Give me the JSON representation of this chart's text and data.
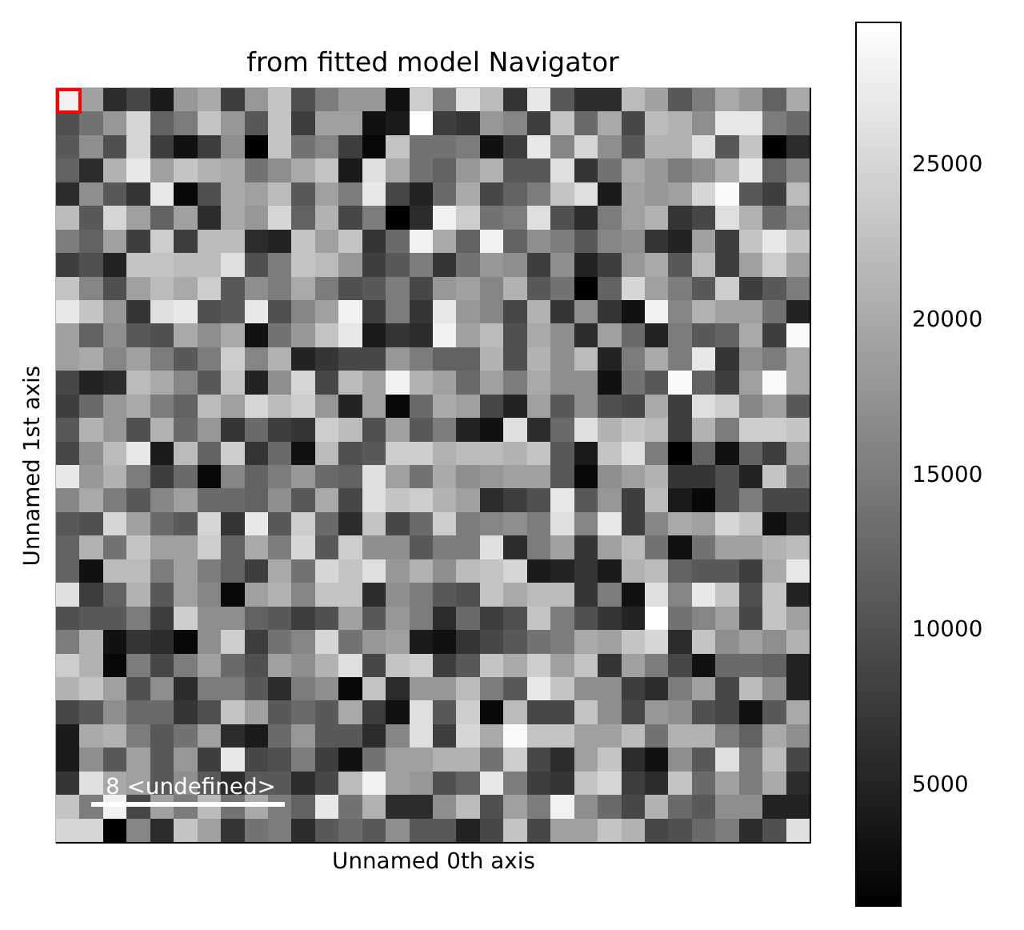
{
  "chart_data": {
    "type": "heatmap",
    "title": "from fitted model Navigator",
    "xlabel": "Unnamed 0th axis",
    "ylabel": "Unnamed 1st axis",
    "categories": [
      null,
      null,
      null,
      null,
      null,
      null,
      null,
      null,
      null,
      null,
      null,
      null,
      null,
      null,
      null,
      null,
      null,
      null,
      null,
      null,
      null,
      null,
      null,
      null,
      null,
      null,
      null,
      null,
      null,
      null,
      null,
      null
    ],
    "y_categories": [
      null,
      null,
      null,
      null,
      null,
      null,
      null,
      null,
      null,
      null,
      null,
      null,
      null,
      null,
      null,
      null,
      null,
      null,
      null,
      null,
      null,
      null,
      null,
      null,
      null,
      null,
      null,
      null,
      null,
      null,
      null,
      null
    ],
    "cells": [
      [
        28000,
        19000,
        6000,
        9000,
        4000,
        18000,
        20000,
        8000,
        18000,
        23000,
        10000,
        15000,
        18000,
        18000,
        3000,
        24000,
        15000,
        26000,
        22000,
        7000,
        27000,
        11000,
        6000,
        6000,
        22000,
        19000,
        11000,
        15000,
        20000,
        18000,
        12000,
        20000
      ],
      [
        10000,
        14000,
        18000,
        25000,
        12000,
        15000,
        23000,
        18000,
        11000,
        23000,
        8000,
        19000,
        19000,
        3000,
        4000,
        29600,
        8000,
        7000,
        18000,
        16000,
        8000,
        23000,
        13000,
        20000,
        9000,
        22000,
        21000,
        17000,
        27000,
        27000,
        15000,
        13000
      ],
      [
        11000,
        17000,
        10000,
        25000,
        8000,
        3000,
        8000,
        17000,
        1100,
        23000,
        14000,
        16000,
        8000,
        2000,
        23000,
        14000,
        14000,
        15000,
        3000,
        8000,
        27000,
        16000,
        25000,
        17000,
        11000,
        21000,
        21000,
        26000,
        11000,
        23000,
        1100,
        6000
      ],
      [
        12000,
        6000,
        21000,
        27000,
        19000,
        23000,
        21000,
        20000,
        14000,
        17000,
        20000,
        23000,
        4000,
        26000,
        20000,
        14000,
        12000,
        18000,
        21000,
        11000,
        11000,
        26000,
        7000,
        14000,
        20000,
        18000,
        15000,
        17000,
        21000,
        27000,
        12000,
        16000
      ],
      [
        6000,
        17000,
        11000,
        7000,
        27000,
        2000,
        10000,
        20000,
        19000,
        22000,
        11000,
        19000,
        15000,
        27000,
        9000,
        5000,
        13000,
        20000,
        9000,
        12000,
        15000,
        23000,
        26000,
        4000,
        19000,
        18000,
        19000,
        25000,
        29000,
        11000,
        8000,
        22000
      ],
      [
        22000,
        11000,
        25000,
        19000,
        12000,
        19000,
        6000,
        20000,
        18000,
        25000,
        12000,
        21000,
        9000,
        15000,
        1100,
        6000,
        28000,
        24000,
        14000,
        15000,
        26000,
        10000,
        6000,
        15000,
        19000,
        21000,
        7000,
        9000,
        26000,
        21000,
        13000,
        17000
      ],
      [
        15000,
        12000,
        19000,
        8000,
        24000,
        8000,
        22000,
        22000,
        6000,
        5000,
        23000,
        19000,
        23000,
        7000,
        13000,
        28000,
        20000,
        12000,
        28000,
        12000,
        17000,
        15000,
        11000,
        16000,
        17000,
        7000,
        5000,
        19000,
        8000,
        23000,
        27000,
        23000
      ],
      [
        8000,
        10000,
        5000,
        23000,
        23000,
        22000,
        22000,
        26000,
        10000,
        15000,
        23000,
        22000,
        18000,
        8000,
        11000,
        15000,
        7000,
        14000,
        18000,
        17000,
        8000,
        17000,
        5000,
        8000,
        18000,
        20000,
        11000,
        22000,
        8000,
        19000,
        24000,
        19000
      ],
      [
        23000,
        16000,
        10000,
        19000,
        22000,
        20000,
        24000,
        11000,
        17000,
        15000,
        20000,
        15000,
        10000,
        11000,
        15000,
        9000,
        18000,
        19000,
        16000,
        21000,
        11000,
        14000,
        1100,
        12000,
        25000,
        19000,
        15000,
        11000,
        24000,
        8000,
        11000,
        15000
      ],
      [
        27000,
        23000,
        18000,
        7000,
        26000,
        27000,
        10000,
        11000,
        27000,
        10000,
        16000,
        19000,
        28000,
        8000,
        15000,
        7000,
        27000,
        18000,
        16000,
        9000,
        21000,
        7000,
        17000,
        7000,
        3000,
        28000,
        16000,
        21000,
        19000,
        19000,
        14000,
        5000
      ],
      [
        19000,
        12000,
        17000,
        11000,
        10000,
        20000,
        17000,
        20000,
        3000,
        14000,
        18000,
        23000,
        27000,
        4000,
        7000,
        6000,
        28000,
        19000,
        22000,
        10000,
        20000,
        17000,
        6000,
        19000,
        13000,
        5000,
        15000,
        11000,
        12000,
        20000,
        8000,
        29000
      ],
      [
        19000,
        20000,
        16000,
        19000,
        15000,
        11000,
        15000,
        24000,
        16000,
        21000,
        5000,
        7000,
        9000,
        9000,
        18000,
        15000,
        12000,
        12000,
        21000,
        10000,
        21000,
        17000,
        22000,
        5000,
        15000,
        20000,
        15000,
        27000,
        7000,
        17000,
        15000,
        20000
      ],
      [
        9000,
        5000,
        6000,
        22000,
        20000,
        16000,
        11000,
        23000,
        5000,
        17000,
        25000,
        9000,
        22000,
        19000,
        28000,
        21000,
        19000,
        13000,
        19000,
        15000,
        20000,
        17000,
        17000,
        3000,
        14000,
        11000,
        29000,
        12000,
        8000,
        19000,
        29000,
        20000
      ],
      [
        8000,
        13000,
        18000,
        20000,
        15000,
        12000,
        22000,
        19000,
        25000,
        22000,
        24000,
        18000,
        5000,
        19000,
        2000,
        13000,
        20000,
        19000,
        9000,
        5000,
        19000,
        11000,
        17000,
        10000,
        9000,
        20000,
        8000,
        26000,
        24000,
        16000,
        19000,
        11000
      ],
      [
        11000,
        21000,
        18000,
        10000,
        21000,
        13000,
        18000,
        7000,
        13000,
        8000,
        7000,
        24000,
        22000,
        10000,
        19000,
        11000,
        15000,
        5000,
        3000,
        26000,
        6000,
        13000,
        26000,
        21000,
        23000,
        22000,
        8000,
        21000,
        15000,
        24000,
        24000,
        23000
      ],
      [
        9000,
        17000,
        22000,
        27000,
        4000,
        22000,
        12000,
        24000,
        7000,
        13000,
        3000,
        22000,
        10000,
        11000,
        24000,
        24000,
        21000,
        22000,
        22000,
        21000,
        23000,
        11000,
        4000,
        23000,
        26000,
        15000,
        1100,
        12000,
        3000,
        12000,
        8000,
        19000
      ],
      [
        27000,
        18000,
        21000,
        15000,
        8000,
        13000,
        2000,
        16000,
        12000,
        15000,
        18000,
        13000,
        12000,
        26000,
        19000,
        14000,
        20000,
        17000,
        18000,
        19000,
        19000,
        11000,
        2000,
        17000,
        19000,
        21000,
        7000,
        7000,
        10000,
        5000,
        23000,
        14000
      ],
      [
        16000,
        20000,
        15000,
        11000,
        16000,
        19000,
        13000,
        13000,
        12000,
        17000,
        11000,
        20000,
        9000,
        26000,
        23000,
        24000,
        21000,
        19000,
        6000,
        8000,
        10000,
        27000,
        11000,
        18000,
        8000,
        22000,
        4000,
        2000,
        10000,
        15000,
        9000,
        9000
      ],
      [
        11000,
        10000,
        25000,
        19000,
        13000,
        11000,
        25000,
        7000,
        27000,
        11000,
        24000,
        13000,
        6000,
        23000,
        9000,
        13000,
        24000,
        15000,
        16000,
        17000,
        15000,
        26000,
        16000,
        27000,
        8000,
        16000,
        20000,
        19000,
        25000,
        23000,
        3000,
        6000
      ],
      [
        12000,
        21000,
        14000,
        23000,
        19000,
        19000,
        24000,
        12000,
        20000,
        15000,
        25000,
        11000,
        24000,
        17000,
        17000,
        11000,
        15000,
        15000,
        26000,
        6000,
        15000,
        19000,
        7000,
        19000,
        22000,
        14000,
        3000,
        14000,
        19000,
        19000,
        21000,
        22000
      ],
      [
        12000,
        3000,
        22000,
        22000,
        15000,
        19000,
        15000,
        12000,
        8000,
        20000,
        14000,
        25000,
        23000,
        26000,
        18000,
        21000,
        17000,
        22000,
        23000,
        25000,
        4000,
        5000,
        7000,
        4000,
        21000,
        22000,
        12000,
        11000,
        11000,
        8000,
        20000,
        27000
      ],
      [
        26000,
        8000,
        12000,
        21000,
        11000,
        19000,
        16000,
        2000,
        19000,
        21000,
        16000,
        23000,
        23000,
        6000,
        17000,
        15000,
        11000,
        10000,
        23000,
        20000,
        22000,
        22000,
        7000,
        15000,
        3000,
        26000,
        16000,
        27000,
        23000,
        10000,
        23000,
        5000
      ],
      [
        10000,
        11000,
        11000,
        15000,
        8000,
        24000,
        17000,
        17000,
        12000,
        11000,
        8000,
        10000,
        19000,
        11000,
        18000,
        15000,
        6000,
        13000,
        8000,
        10000,
        23000,
        15000,
        10000,
        7000,
        5000,
        29600,
        14000,
        16000,
        19000,
        9000,
        23000,
        19000
      ],
      [
        15000,
        21000,
        3000,
        7000,
        6000,
        2000,
        17000,
        24000,
        8000,
        14000,
        16000,
        25000,
        14000,
        18000,
        19000,
        4000,
        3000,
        7000,
        9000,
        11000,
        14000,
        15000,
        20000,
        19000,
        23000,
        25000,
        6000,
        23000,
        17000,
        19000,
        17000,
        21000
      ],
      [
        24000,
        21000,
        2000,
        15000,
        9000,
        15000,
        19000,
        13000,
        10000,
        19000,
        17000,
        21000,
        26000,
        9000,
        23000,
        24000,
        8000,
        11000,
        23000,
        20000,
        24000,
        19000,
        23000,
        7000,
        19000,
        15000,
        9000,
        3000,
        13000,
        13000,
        12000,
        5000
      ],
      [
        21000,
        23000,
        19000,
        10000,
        17000,
        6000,
        15000,
        15000,
        11000,
        6000,
        15000,
        17000,
        2000,
        23000,
        6000,
        18000,
        18000,
        22000,
        15000,
        11000,
        27000,
        23000,
        17000,
        17000,
        8000,
        6000,
        15000,
        19000,
        9000,
        22000,
        17000,
        5000
      ],
      [
        9000,
        11000,
        17000,
        13000,
        13000,
        7000,
        10000,
        23000,
        19000,
        11000,
        13000,
        11000,
        20000,
        8000,
        3000,
        26000,
        11000,
        24000,
        2000,
        22000,
        9000,
        9000,
        23000,
        17000,
        9000,
        18000,
        17000,
        10000,
        9000,
        3000,
        11000,
        20000
      ],
      [
        4000,
        20000,
        21000,
        15000,
        11000,
        14000,
        19000,
        6000,
        4000,
        13000,
        18000,
        11000,
        11000,
        6000,
        16000,
        26000,
        8000,
        25000,
        20000,
        29000,
        23000,
        23000,
        19000,
        19000,
        22000,
        14000,
        21000,
        21000,
        15000,
        12000,
        20000,
        17000
      ],
      [
        4000,
        17000,
        11000,
        19000,
        11000,
        18000,
        8000,
        27000,
        9000,
        10000,
        15000,
        8000,
        3000,
        14000,
        19000,
        19000,
        21000,
        21000,
        14000,
        24000,
        9000,
        6000,
        19000,
        23000,
        6000,
        3000,
        17000,
        11000,
        26000,
        15000,
        22000,
        9000
      ],
      [
        7000,
        26000,
        20000,
        19000,
        11000,
        17000,
        11000,
        6000,
        11000,
        11000,
        6000,
        9000,
        22000,
        28000,
        19000,
        18000,
        10000,
        12000,
        27000,
        15000,
        8000,
        7000,
        23000,
        25000,
        8000,
        6000,
        23000,
        13000,
        19000,
        15000,
        20000,
        6000
      ],
      [
        23000,
        15000,
        28000,
        9000,
        19000,
        15000,
        22000,
        14000,
        20000,
        15000,
        12000,
        27000,
        14000,
        21000,
        6000,
        6000,
        17000,
        22000,
        10000,
        19000,
        15000,
        28000,
        17000,
        13000,
        9000,
        21000,
        13000,
        11000,
        17000,
        17000,
        5000,
        5000
      ],
      [
        25000,
        25000,
        1100,
        16000,
        6000,
        23000,
        19000,
        7000,
        14000,
        15000,
        6000,
        11000,
        13000,
        11000,
        17000,
        11000,
        11000,
        5000,
        9000,
        23000,
        9000,
        19000,
        19000,
        23000,
        21000,
        9000,
        10000,
        13000,
        15000,
        6000,
        10000,
        26000
      ]
    ],
    "clim": [
      1100,
      29600
    ],
    "cticks": [
      5000,
      10000,
      15000,
      20000,
      25000
    ],
    "annotations": [
      "8 <undefined>"
    ]
  }
}
